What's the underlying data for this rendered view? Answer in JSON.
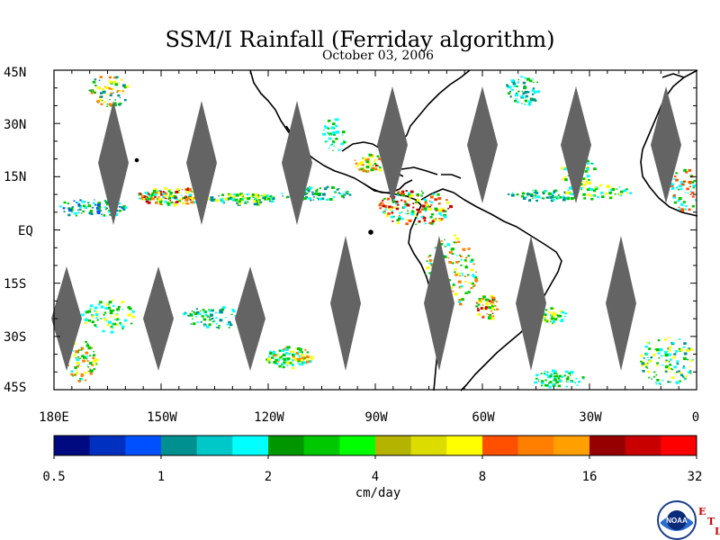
{
  "title": "SSM/I Rainfall (Ferriday algorithm)",
  "date": "October 03, 2006",
  "lat_labels": [
    "45N",
    "30N",
    "15N",
    "EQ",
    "15S",
    "30S",
    "45S"
  ],
  "lon_labels": [
    "180E",
    "150W",
    "120W",
    "90W",
    "60W",
    "30W",
    "0"
  ],
  "colorbar": {
    "colors": [
      "#000a80",
      "#0030c0",
      "#0050ff",
      "#009090",
      "#00c8c8",
      "#00ffff",
      "#009600",
      "#00c800",
      "#00ff00",
      "#b4b400",
      "#dcdc00",
      "#ffff00",
      "#ff5000",
      "#ff8000",
      "#ffa000",
      "#960000",
      "#c80000",
      "#ff0000"
    ],
    "tick_labels": [
      "0.5",
      "1",
      "2",
      "4",
      "8",
      "16",
      "32"
    ],
    "units": "cm/day"
  },
  "logo": {
    "text": "NOAA",
    "letters": [
      "E",
      "T",
      "L"
    ]
  }
}
